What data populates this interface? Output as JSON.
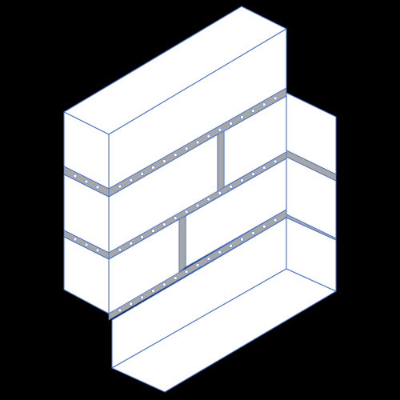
{
  "illustration": {
    "subject": "brick-wall-icon",
    "style": "isometric line art",
    "colors": {
      "background": "#000000",
      "brick_face": "#ffffff",
      "mortar": "#a7a7a7",
      "outline": "#4a72c9"
    }
  }
}
